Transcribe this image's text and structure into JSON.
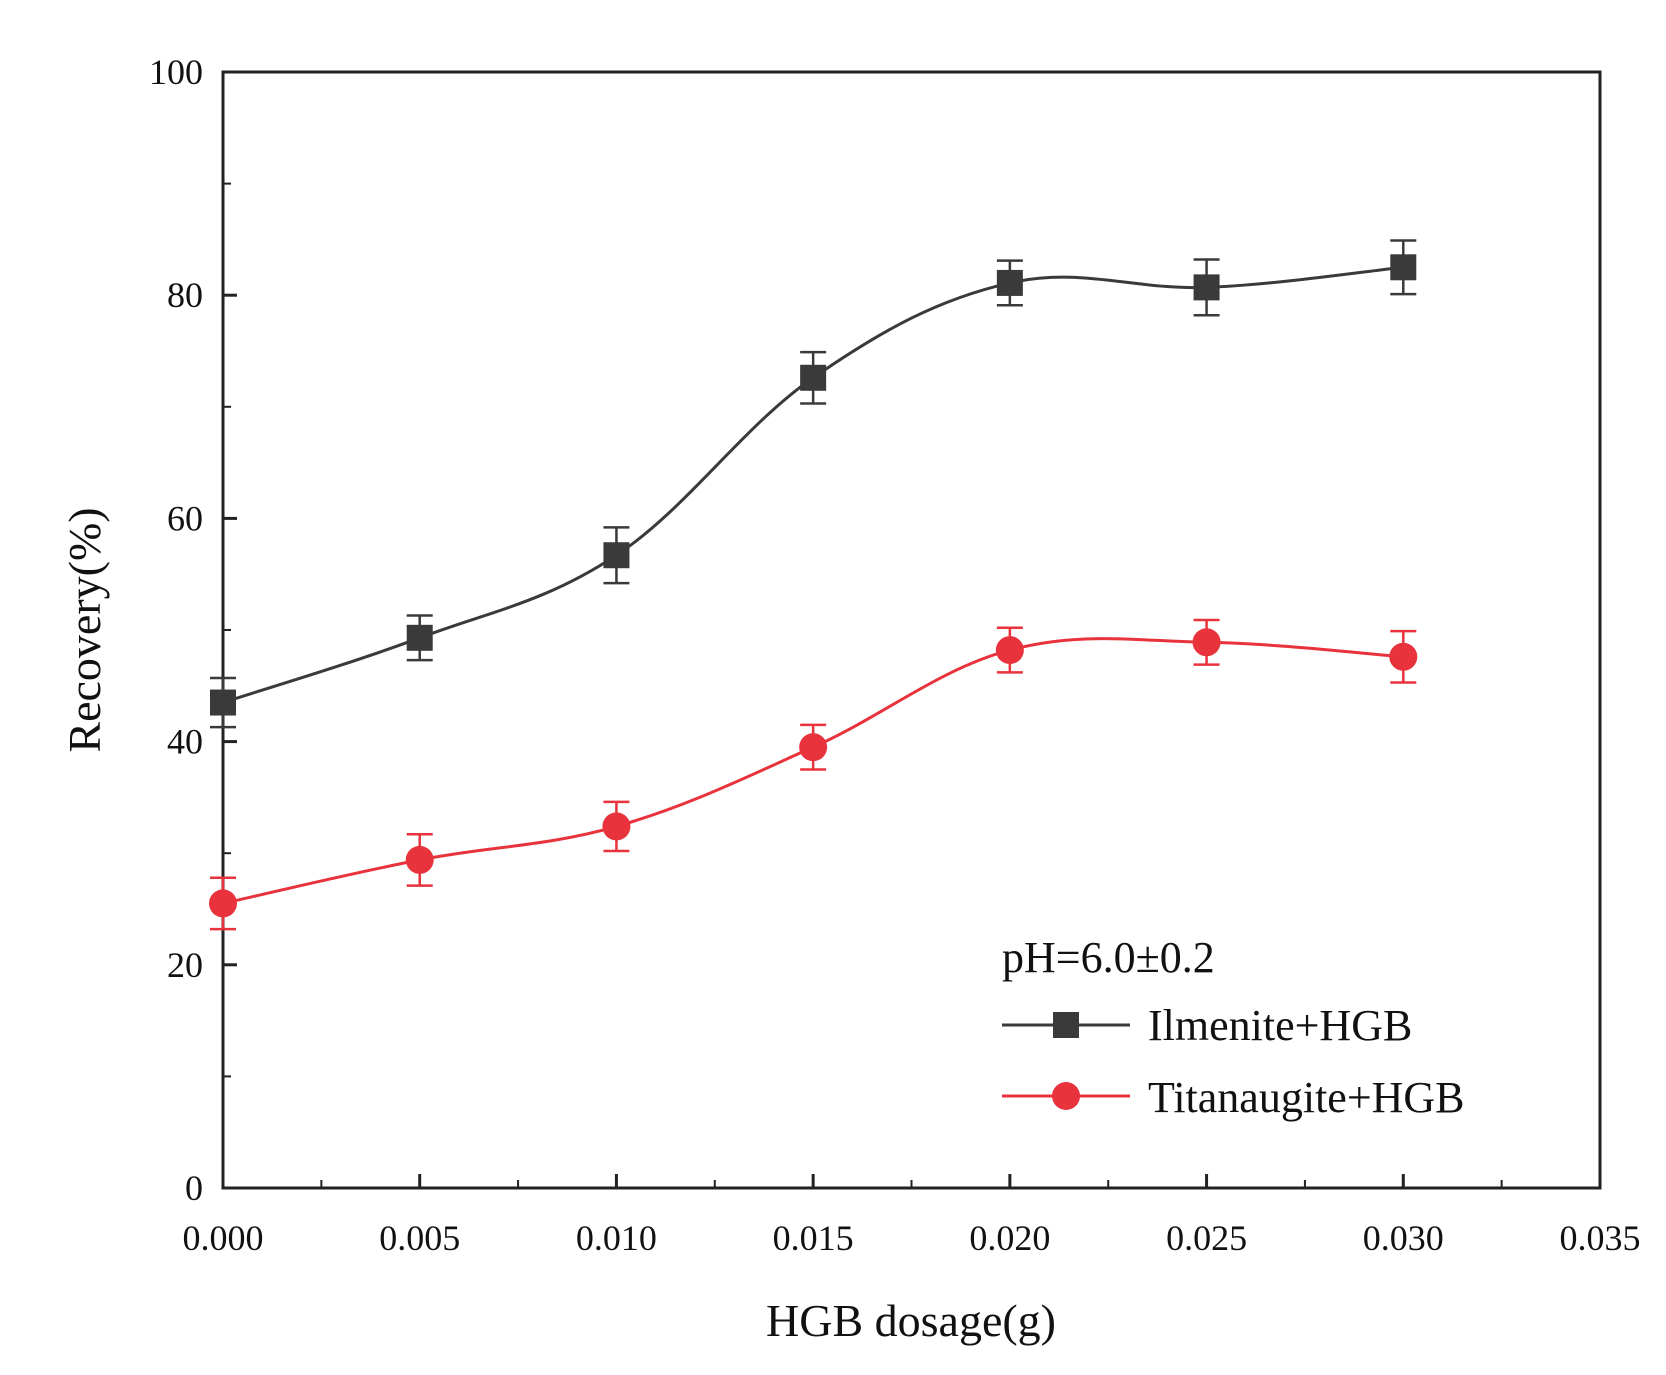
{
  "chart_data": {
    "type": "line",
    "title": "",
    "xlabel": "HGB dosage(g)",
    "ylabel": "Recovery(%)",
    "xlim": [
      0,
      0.035
    ],
    "ylim": [
      0,
      100
    ],
    "x_ticks": [
      "0.000",
      "0.005",
      "0.010",
      "0.015",
      "0.020",
      "0.025",
      "0.030",
      "0.035"
    ],
    "y_ticks": [
      "0",
      "20",
      "40",
      "60",
      "80",
      "100"
    ],
    "x_tick_values": [
      0,
      0.005,
      0.01,
      0.015,
      0.02,
      0.025,
      0.03,
      0.035
    ],
    "y_tick_values": [
      0,
      20,
      40,
      60,
      80,
      100
    ],
    "annotation": "pH=6.0±0.2",
    "legend_position": "bottom-right",
    "series": [
      {
        "name": "Ilmenite+HGB",
        "color": "#3a3a3a",
        "marker": "square",
        "x": [
          0,
          0.005,
          0.01,
          0.015,
          0.02,
          0.025,
          0.03
        ],
        "values": [
          43.5,
          49.3,
          56.7,
          72.6,
          81.1,
          80.7,
          82.5
        ],
        "error": [
          2.2,
          2.0,
          2.5,
          2.3,
          2.0,
          2.5,
          2.4
        ]
      },
      {
        "name": "Titanaugite+HGB",
        "color": "#e8323c",
        "marker": "circle",
        "x": [
          0,
          0.005,
          0.01,
          0.015,
          0.02,
          0.025,
          0.03
        ],
        "values": [
          25.5,
          29.4,
          32.4,
          39.5,
          48.2,
          48.9,
          47.6
        ],
        "error": [
          2.3,
          2.3,
          2.2,
          2.0,
          2.0,
          2.0,
          2.3
        ]
      }
    ]
  }
}
